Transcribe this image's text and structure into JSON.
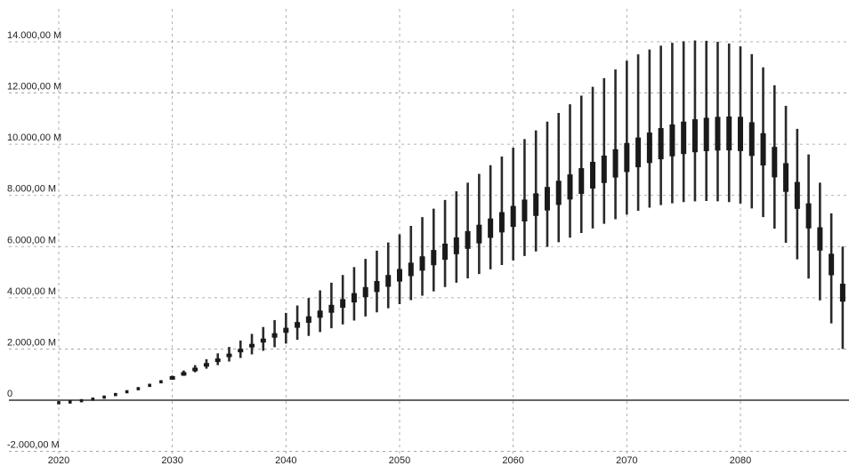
{
  "chart_data": {
    "type": "box",
    "title": "",
    "xlabel": "",
    "ylabel": "",
    "xlim": [
      2019.5,
      2089.5
    ],
    "ylim": [
      -2000,
      14500
    ],
    "grid": true,
    "legend": "none",
    "x_ticks": [
      2020,
      2030,
      2040,
      2050,
      2060,
      2070,
      2080
    ],
    "x_tick_labels": [
      "2020",
      "2030",
      "2040",
      "2050",
      "2060",
      "2070",
      "2080"
    ],
    "y_ticks": [
      -2000,
      0,
      2000,
      4000,
      6000,
      8000,
      10000,
      12000,
      14000
    ],
    "y_tick_labels": [
      "-2.000,00 M",
      "0",
      "2.000,00 M",
      "4.000,00 M",
      "6.000,00 M",
      "8.000,00 M",
      "10.000,00 M",
      "12.000,00 M",
      "14.000,00 M"
    ],
    "series": [
      {
        "x": [
          2020,
          2021,
          2022,
          2023,
          2024,
          2025,
          2026,
          2027,
          2028,
          2029,
          2030,
          2031,
          2032,
          2033,
          2034,
          2035,
          2036,
          2037,
          2038,
          2039,
          2040,
          2041,
          2042,
          2043,
          2044,
          2045,
          2046,
          2047,
          2048,
          2049,
          2050,
          2051,
          2052,
          2053,
          2054,
          2055,
          2056,
          2057,
          2058,
          2059,
          2060,
          2061,
          2062,
          2063,
          2064,
          2065,
          2066,
          2067,
          2068,
          2069,
          2070,
          2071,
          2072,
          2073,
          2074,
          2075,
          2076,
          2077,
          2078,
          2079,
          2080,
          2081,
          2082,
          2083,
          2084,
          2085,
          2086,
          2087,
          2088,
          2089
        ],
        "median": [
          -100,
          -70,
          -20,
          40,
          120,
          220,
          330,
          450,
          580,
          720,
          870,
          1030,
          1200,
          1380,
          1560,
          1750,
          1940,
          2130,
          2330,
          2530,
          2730,
          2940,
          3150,
          3360,
          3570,
          3780,
          4000,
          4220,
          4440,
          4660,
          4880,
          5110,
          5340,
          5570,
          5800,
          6030,
          6260,
          6490,
          6720,
          6950,
          7180,
          7410,
          7640,
          7870,
          8100,
          8330,
          8560,
          8790,
          9020,
          9250,
          9480,
          9680,
          9860,
          10020,
          10150,
          10250,
          10330,
          10380,
          10410,
          10420,
          10400,
          10200,
          9800,
          9300,
          8700,
          8000,
          7200,
          6300,
          5300,
          4200
        ],
        "q1": [
          -100,
          -70,
          -20,
          40,
          120,
          220,
          330,
          450,
          570,
          700,
          840,
          990,
          1140,
          1300,
          1460,
          1620,
          1780,
          1950,
          2110,
          2280,
          2450,
          2620,
          2790,
          2960,
          3130,
          3300,
          3480,
          3650,
          3830,
          4000,
          4180,
          4360,
          4540,
          4720,
          4900,
          5090,
          5270,
          5450,
          5640,
          5820,
          6010,
          6190,
          6380,
          6560,
          6750,
          6930,
          7120,
          7300,
          7490,
          7670,
          7860,
          8020,
          8160,
          8280,
          8370,
          8440,
          8490,
          8520,
          8530,
          8530,
          8490,
          8320,
          8000,
          7600,
          7100,
          6500,
          5800,
          5000,
          4100,
          3200
        ],
        "q3": [
          -100,
          -70,
          -20,
          40,
          120,
          220,
          330,
          450,
          590,
          740,
          900,
          1070,
          1260,
          1460,
          1660,
          1880,
          2100,
          2310,
          2550,
          2780,
          3010,
          3260,
          3510,
          3760,
          4010,
          4260,
          4520,
          4790,
          5050,
          5320,
          5580,
          5860,
          6140,
          6420,
          6700,
          6970,
          7250,
          7530,
          7800,
          8080,
          8350,
          8630,
          8900,
          9180,
          9450,
          9730,
          10000,
          10280,
          10550,
          10830,
          11100,
          11340,
          11560,
          11760,
          11930,
          12060,
          12170,
          12240,
          12290,
          12310,
          12310,
          12080,
          11600,
          11000,
          10300,
          9500,
          8600,
          7600,
          6500,
          5200
        ],
        "whisker_low": [
          -100,
          -70,
          -20,
          40,
          120,
          220,
          330,
          450,
          560,
          680,
          810,
          950,
          1090,
          1230,
          1370,
          1510,
          1650,
          1790,
          1930,
          2070,
          2210,
          2360,
          2510,
          2660,
          2810,
          2960,
          3110,
          3270,
          3430,
          3590,
          3750,
          3910,
          4080,
          4250,
          4420,
          4590,
          4760,
          4930,
          5110,
          5280,
          5460,
          5630,
          5810,
          5990,
          6170,
          6350,
          6530,
          6710,
          6890,
          7070,
          7250,
          7400,
          7520,
          7620,
          7690,
          7740,
          7770,
          7780,
          7770,
          7740,
          7680,
          7490,
          7150,
          6700,
          6150,
          5500,
          4750,
          3900,
          3000,
          2000
        ],
        "whisker_high": [
          -100,
          -70,
          -20,
          40,
          120,
          220,
          330,
          450,
          610,
          780,
          960,
          1160,
          1370,
          1600,
          1830,
          2080,
          2330,
          2590,
          2860,
          3130,
          3410,
          3700,
          3990,
          4290,
          4590,
          4890,
          5200,
          5520,
          5840,
          6160,
          6480,
          6810,
          7150,
          7480,
          7820,
          8160,
          8500,
          8840,
          9180,
          9520,
          9860,
          10200,
          10540,
          10880,
          11220,
          11560,
          11900,
          12240,
          12580,
          12920,
          13260,
          13510,
          13700,
          13850,
          13960,
          14020,
          14050,
          14040,
          14000,
          13930,
          13820,
          13520,
          13000,
          12300,
          11500,
          10600,
          9600,
          8500,
          7300,
          6000
        ]
      }
    ]
  }
}
